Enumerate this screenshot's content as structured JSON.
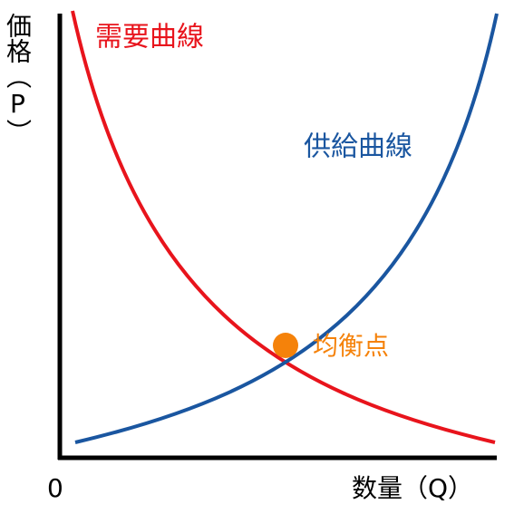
{
  "axes": {
    "y_label": "価格（P）",
    "x_label": "数量（Q）",
    "origin": "0"
  },
  "curves": {
    "demand": "需要曲線",
    "supply": "供給曲線"
  },
  "equilibrium": {
    "label": "均衡点"
  }
}
